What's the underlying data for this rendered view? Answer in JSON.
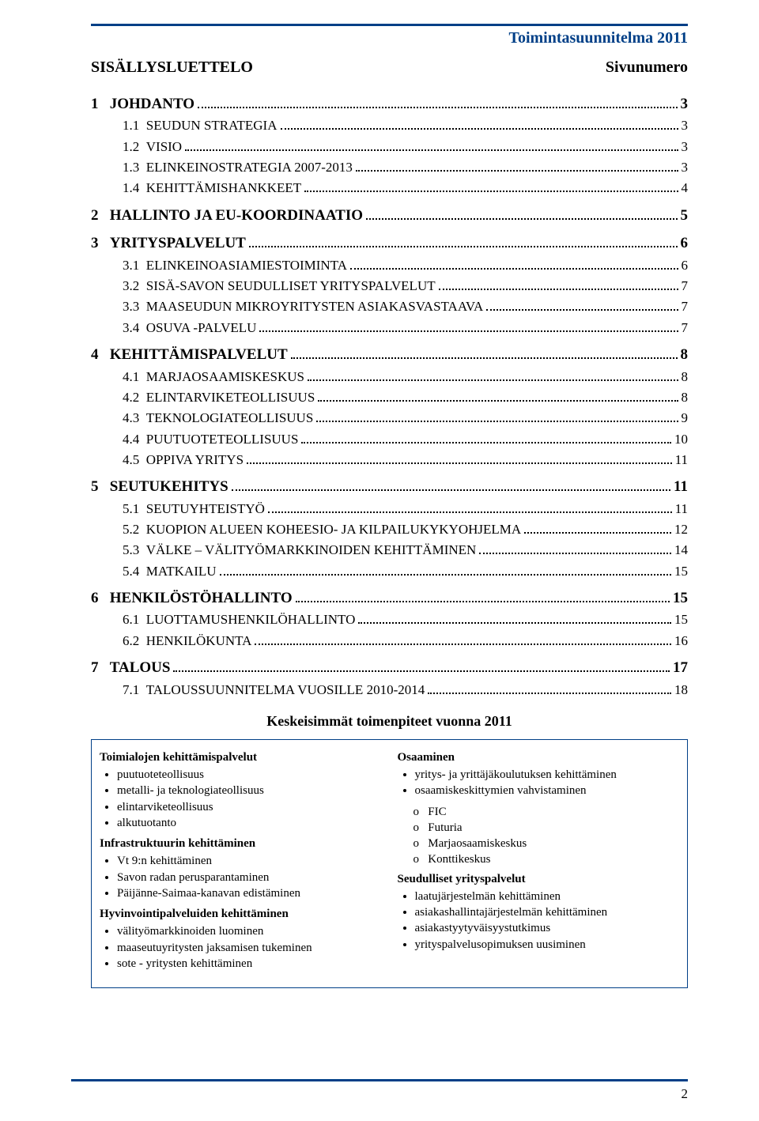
{
  "header": {
    "doc_title": "Toimintasuunnitelma 2011",
    "toc_title": "SISÄLLYSLUETTELO",
    "page_label": "Sivunumero"
  },
  "colors": {
    "accent": "#003f87",
    "text": "#000000",
    "background": "#ffffff"
  },
  "toc": [
    {
      "level": 1,
      "num": "1",
      "title": "JOHDANTO",
      "page": "3"
    },
    {
      "level": 2,
      "num": "1.1",
      "title": "SEUDUN STRATEGIA",
      "page": "3"
    },
    {
      "level": 2,
      "num": "1.2",
      "title": "VISIO",
      "page": "3"
    },
    {
      "level": 2,
      "num": "1.3",
      "title": "ELINKEINOSTRATEGIA 2007-2013",
      "page": "3"
    },
    {
      "level": 2,
      "num": "1.4",
      "title": "KEHITTÄMISHANKKEET",
      "page": "4"
    },
    {
      "level": 1,
      "num": "2",
      "title": "HALLINTO JA EU-KOORDINAATIO",
      "page": "5"
    },
    {
      "level": 1,
      "num": "3",
      "title": "YRITYSPALVELUT",
      "page": "6"
    },
    {
      "level": 2,
      "num": "3.1",
      "title": "ELINKEINOASIAMIESTOIMINTA",
      "page": "6"
    },
    {
      "level": 2,
      "num": "3.2",
      "title": "SISÄ-SAVON SEUDULLISET YRITYSPALVELUT",
      "page": "7"
    },
    {
      "level": 2,
      "num": "3.3",
      "title": "MAASEUDUN MIKROYRITYSTEN ASIAKASVASTAAVA",
      "page": "7"
    },
    {
      "level": 2,
      "num": "3.4",
      "title": "OSUVA -PALVELU",
      "page": "7"
    },
    {
      "level": 1,
      "num": "4",
      "title": "KEHITTÄMISPALVELUT",
      "page": "8"
    },
    {
      "level": 2,
      "num": "4.1",
      "title": "MARJAOSAAMISKESKUS",
      "page": "8"
    },
    {
      "level": 2,
      "num": "4.2",
      "title": "ELINTARVIKETEOLLISUUS",
      "page": "8"
    },
    {
      "level": 2,
      "num": "4.3",
      "title": "TEKNOLOGIATEOLLISUUS",
      "page": "9"
    },
    {
      "level": 2,
      "num": "4.4",
      "title": "PUUTUOTETEOLLISUUS",
      "page": "10"
    },
    {
      "level": 2,
      "num": "4.5",
      "title": "OPPIVA YRITYS",
      "page": "11"
    },
    {
      "level": 1,
      "num": "5",
      "title": "SEUTUKEHITYS",
      "page": "11"
    },
    {
      "level": 2,
      "num": "5.1",
      "title": "SEUTUYHTEISTYÖ",
      "page": "11"
    },
    {
      "level": 2,
      "num": "5.2",
      "title": "KUOPION ALUEEN KOHEESIO- JA KILPAILUKYKYOHJELMA",
      "page": "12"
    },
    {
      "level": 2,
      "num": "5.3",
      "title": "VÄLKE – VÄLITYÖMARKKINOIDEN KEHITTÄMINEN",
      "page": "14"
    },
    {
      "level": 2,
      "num": "5.4",
      "title": "MATKAILU",
      "page": "15"
    },
    {
      "level": 1,
      "num": "6",
      "title": "HENKILÖSTÖHALLINTO",
      "page": "15"
    },
    {
      "level": 2,
      "num": "6.1",
      "title": "LUOTTAMUSHENKILÖHALLINTO",
      "page": "15"
    },
    {
      "level": 2,
      "num": "6.2",
      "title": "HENKILÖKUNTA",
      "page": "16"
    },
    {
      "level": 1,
      "num": "7",
      "title": "TALOUS",
      "page": "17"
    },
    {
      "level": 2,
      "num": "7.1",
      "title": "TALOUSSUUNNITELMA VUOSILLE 2010-2014",
      "page": "18"
    }
  ],
  "subheading": "Keskeisimmät toimenpiteet vuonna 2011",
  "left_column": {
    "groups": [
      {
        "title": "Toimialojen kehittämispalvelut",
        "items": [
          "puutuoteteollisuus",
          "metalli- ja teknologiateollisuus",
          "elintarviketeollisuus",
          "alkutuotanto"
        ]
      },
      {
        "title": "Infrastruktuurin kehittäminen",
        "items": [
          "Vt 9:n kehittäminen",
          "Savon radan perusparantaminen",
          "Päijänne-Saimaa-kanavan edistäminen"
        ]
      },
      {
        "title": "Hyvinvointipalveluiden kehittäminen",
        "items": [
          "välityömarkkinoiden luominen",
          "maaseutuyritysten jaksamisen tukeminen",
          "sote - yritysten kehittäminen"
        ]
      }
    ]
  },
  "right_column": {
    "groups": [
      {
        "title": "Osaaminen",
        "items": [
          "yritys- ja yrittäjäkoulutuksen kehittäminen",
          "osaamiskeskittymien vahvistaminen"
        ],
        "sub_o": [
          "FIC",
          "Futuria",
          "Marjaosaamiskeskus",
          "Konttikeskus"
        ]
      },
      {
        "title": "Seudulliset yrityspalvelut",
        "items": [
          "laatujärjestelmän kehittäminen",
          "asiakashallintajärjestelmän kehittäminen",
          "asiakastyytyväisyystutkimus",
          "yrityspalvelusopimuksen uusiminen"
        ]
      }
    ]
  },
  "page_number": "2"
}
